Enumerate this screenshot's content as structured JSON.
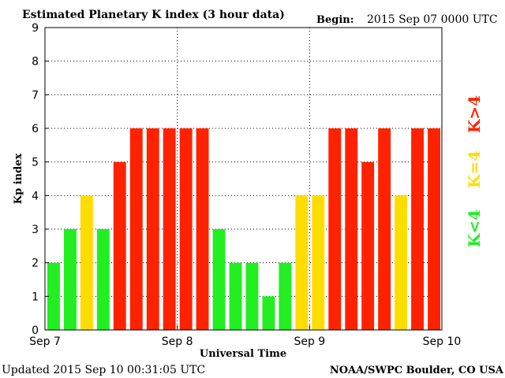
{
  "header": {
    "title": "Estimated Planetary K index (3 hour data)",
    "begin_label": "Begin:",
    "begin_value": "2015 Sep 07 0000 UTC"
  },
  "footer": {
    "updated": "Updated 2015 Sep 10 00:31:05 UTC",
    "source": "NOAA/SWPC Boulder, CO USA"
  },
  "legend": {
    "high": "K>4",
    "equal": "K=4",
    "low": "K<4"
  },
  "colors": {
    "low": "#22ee22",
    "equal": "#ffdd00",
    "high": "#ff2200",
    "grid": "#000000"
  },
  "chart_data": {
    "type": "bar",
    "title": "Estimated Planetary K index (3 hour data)",
    "xlabel": "Universal Time",
    "ylabel": "Kp index",
    "ylim": [
      0,
      9
    ],
    "yticks": [
      0,
      1,
      2,
      3,
      4,
      5,
      6,
      7,
      8,
      9
    ],
    "xticks": [
      "Sep 7",
      "Sep 8",
      "Sep 9",
      "Sep 10"
    ],
    "grid": true,
    "series": [
      {
        "values": [
          2,
          3,
          4,
          3,
          5,
          6,
          6,
          6,
          6,
          6,
          3,
          2,
          2,
          1,
          2,
          4,
          4,
          6,
          6,
          5,
          6,
          4,
          6,
          6
        ]
      }
    ]
  }
}
